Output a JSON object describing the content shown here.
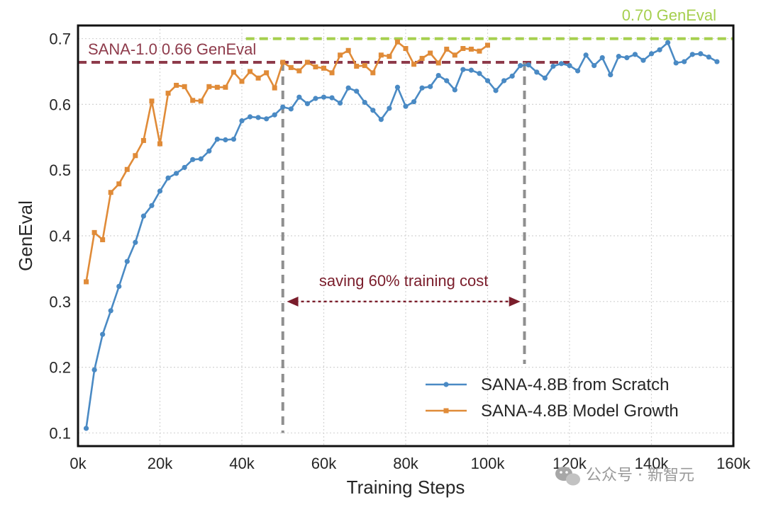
{
  "chart_data": {
    "type": "line",
    "title": "",
    "xlabel": "Training Steps",
    "ylabel": "GenEval",
    "xlim": [
      0,
      160000
    ],
    "ylim": [
      0.08,
      0.72
    ],
    "x_ticks": [
      {
        "value": 0,
        "label": "0k"
      },
      {
        "value": 20000,
        "label": "20k"
      },
      {
        "value": 40000,
        "label": "40k"
      },
      {
        "value": 60000,
        "label": "60k"
      },
      {
        "value": 80000,
        "label": "80k"
      },
      {
        "value": 100000,
        "label": "100k"
      },
      {
        "value": 120000,
        "label": "120k"
      },
      {
        "value": 140000,
        "label": "140k"
      },
      {
        "value": 160000,
        "label": "160k"
      }
    ],
    "y_ticks": [
      {
        "value": 0.1,
        "label": "0.1"
      },
      {
        "value": 0.2,
        "label": "0.2"
      },
      {
        "value": 0.3,
        "label": "0.3"
      },
      {
        "value": 0.4,
        "label": "0.4"
      },
      {
        "value": 0.5,
        "label": "0.5"
      },
      {
        "value": 0.6,
        "label": "0.6"
      },
      {
        "value": 0.7,
        "label": "0.7"
      }
    ],
    "grid": true,
    "legend_position": "bottom-right",
    "series": [
      {
        "name": "SANA-4.8B from Scratch",
        "color": "#4a8ac4",
        "marker": "circle",
        "x": [
          2000,
          4000,
          6000,
          8000,
          10000,
          12000,
          14000,
          16000,
          18000,
          20000,
          22000,
          24000,
          26000,
          28000,
          30000,
          32000,
          34000,
          36000,
          38000,
          40000,
          42000,
          44000,
          46000,
          48000,
          50000,
          52000,
          54000,
          56000,
          58000,
          60000,
          62000,
          64000,
          66000,
          68000,
          70000,
          72000,
          74000,
          76000,
          78000,
          80000,
          82000,
          84000,
          86000,
          88000,
          90000,
          92000,
          94000,
          96000,
          98000,
          100000,
          102000,
          104000,
          106000,
          108000,
          110000,
          112000,
          114000,
          116000,
          118000,
          120000,
          122000,
          124000,
          126000,
          128000,
          130000,
          132000,
          134000,
          136000,
          138000,
          140000,
          142000,
          144000,
          146000,
          148000,
          150000,
          152000,
          154000,
          156000
        ],
        "values": [
          0.107,
          0.196,
          0.25,
          0.286,
          0.323,
          0.361,
          0.39,
          0.43,
          0.446,
          0.468,
          0.488,
          0.495,
          0.504,
          0.516,
          0.517,
          0.529,
          0.547,
          0.546,
          0.547,
          0.575,
          0.581,
          0.58,
          0.578,
          0.584,
          0.596,
          0.593,
          0.611,
          0.601,
          0.609,
          0.611,
          0.61,
          0.602,
          0.625,
          0.62,
          0.603,
          0.591,
          0.577,
          0.594,
          0.626,
          0.597,
          0.604,
          0.625,
          0.627,
          0.644,
          0.636,
          0.622,
          0.653,
          0.652,
          0.647,
          0.636,
          0.621,
          0.636,
          0.643,
          0.659,
          0.66,
          0.649,
          0.64,
          0.658,
          0.662,
          0.659,
          0.651,
          0.675,
          0.659,
          0.671,
          0.645,
          0.673,
          0.671,
          0.676,
          0.667,
          0.677,
          0.683,
          0.694,
          0.663,
          0.665,
          0.676,
          0.677,
          0.672,
          0.665
        ]
      },
      {
        "name": "SANA-4.8B Model Growth",
        "color": "#e08b38",
        "marker": "square",
        "x": [
          2000,
          4000,
          6000,
          8000,
          10000,
          12000,
          14000,
          16000,
          18000,
          20000,
          22000,
          24000,
          26000,
          28000,
          30000,
          32000,
          34000,
          36000,
          38000,
          40000,
          42000,
          44000,
          46000,
          48000,
          50000,
          52000,
          54000,
          56000,
          58000,
          60000,
          62000,
          64000,
          66000,
          68000,
          70000,
          72000,
          74000,
          76000,
          78000,
          80000,
          82000,
          84000,
          86000,
          88000,
          90000,
          92000,
          94000,
          96000,
          98000,
          100000
        ],
        "values": [
          0.33,
          0.405,
          0.394,
          0.466,
          0.479,
          0.501,
          0.522,
          0.545,
          0.605,
          0.54,
          0.617,
          0.629,
          0.627,
          0.606,
          0.605,
          0.627,
          0.626,
          0.626,
          0.649,
          0.635,
          0.65,
          0.64,
          0.648,
          0.625,
          0.664,
          0.656,
          0.651,
          0.664,
          0.657,
          0.655,
          0.648,
          0.675,
          0.682,
          0.658,
          0.659,
          0.648,
          0.675,
          0.673,
          0.695,
          0.685,
          0.661,
          0.67,
          0.678,
          0.663,
          0.684,
          0.675,
          0.685,
          0.684,
          0.681,
          0.69
        ]
      }
    ],
    "reference_lines": [
      {
        "label": "0.70 GenEval",
        "y": 0.7,
        "x_from": 41000,
        "x_to": 160000,
        "color": "#a5cf4e"
      },
      {
        "label": "SANA-1.0 0.66 GenEval",
        "y": 0.664,
        "x_from": 0,
        "x_to": 120000,
        "color": "#8e3b4b"
      }
    ],
    "vertical_markers": [
      {
        "x": 50000,
        "y_from": 0.1,
        "y_to": 0.664,
        "color": "#8f8f8f"
      },
      {
        "x": 109000,
        "y_from": 0.205,
        "y_to": 0.664,
        "color": "#8f8f8f"
      }
    ],
    "annotations": [
      {
        "text": "saving 60% training cost",
        "x_from": 51000,
        "x_to": 108000,
        "y": 0.3,
        "color": "#7a1d2b"
      }
    ]
  },
  "watermark": {
    "text": "公众号 · 新智元",
    "icon": "wechat-icon"
  }
}
